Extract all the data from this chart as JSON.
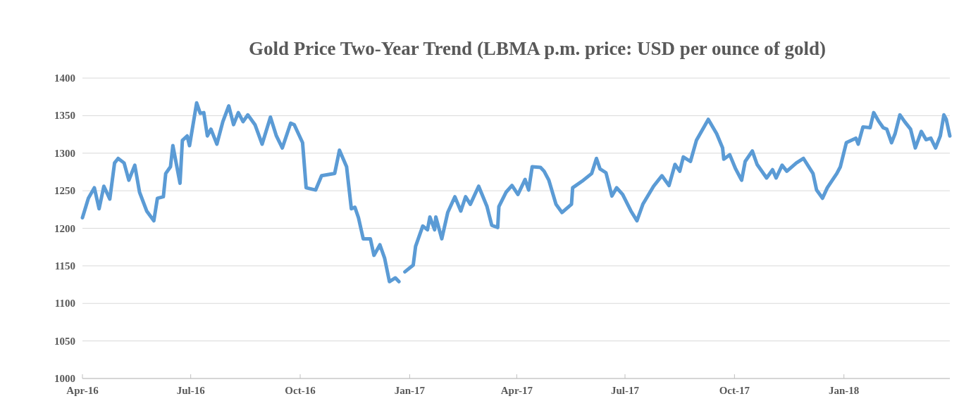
{
  "chart_data": {
    "type": "line",
    "title": "Gold Price Two-Year Trend (LBMA p.m. price: USD per ounce of gold)",
    "x": [
      "2016-04-01",
      "2016-04-06",
      "2016-04-11",
      "2016-04-15",
      "2016-04-19",
      "2016-04-24",
      "2016-04-28",
      "2016-05-01",
      "2016-05-06",
      "2016-05-10",
      "2016-05-15",
      "2016-05-19",
      "2016-05-25",
      "2016-05-31",
      "2016-06-03",
      "2016-06-08",
      "2016-06-10",
      "2016-06-14",
      "2016-06-16",
      "2016-06-22",
      "2016-06-24",
      "2016-06-28",
      "2016-06-30",
      "2016-07-06",
      "2016-07-09",
      "2016-07-12",
      "2016-07-15",
      "2016-07-18",
      "2016-07-23",
      "2016-07-28",
      "2016-08-02",
      "2016-08-06",
      "2016-08-10",
      "2016-08-14",
      "2016-08-18",
      "2016-08-24",
      "2016-08-30",
      "2016-09-06",
      "2016-09-11",
      "2016-09-16",
      "2016-09-23",
      "2016-09-26",
      "2016-10-03",
      "2016-10-06",
      "2016-10-14",
      "2016-10-19",
      "2016-10-30",
      "2016-11-03",
      "2016-11-09",
      "2016-11-13",
      "2016-11-16",
      "2016-11-19",
      "2016-11-23",
      "2016-11-29",
      "2016-12-02",
      "2016-12-07",
      "2016-12-11",
      "2016-12-15",
      "2016-12-20",
      "2016-12-23",
      "2016-12-26",
      "2016-12-28",
      "2017-01-04",
      "2017-01-06",
      "2017-01-12",
      "2017-01-16",
      "2017-01-18",
      "2017-01-22",
      "2017-01-23",
      "2017-01-28",
      "2017-02-02",
      "2017-02-08",
      "2017-02-13",
      "2017-02-17",
      "2017-02-21",
      "2017-02-28",
      "2017-03-07",
      "2017-03-11",
      "2017-03-16",
      "2017-03-17",
      "2017-03-23",
      "2017-03-28",
      "2017-04-02",
      "2017-04-08",
      "2017-04-11",
      "2017-04-14",
      "2017-04-21",
      "2017-04-24",
      "2017-04-28",
      "2017-05-04",
      "2017-05-09",
      "2017-05-17",
      "2017-05-18",
      "2017-05-27",
      "2017-06-03",
      "2017-06-07",
      "2017-06-10",
      "2017-06-15",
      "2017-06-20",
      "2017-06-24",
      "2017-06-29",
      "2017-07-06",
      "2017-07-11",
      "2017-07-16",
      "2017-07-25",
      "2017-08-01",
      "2017-08-07",
      "2017-08-12",
      "2017-08-16",
      "2017-08-19",
      "2017-08-25",
      "2017-08-30",
      "2017-09-09",
      "2017-09-16",
      "2017-09-21",
      "2017-09-22",
      "2017-09-27",
      "2017-10-02",
      "2017-10-07",
      "2017-10-10",
      "2017-10-16",
      "2017-10-20",
      "2017-10-28",
      "2017-11-02",
      "2017-11-05",
      "2017-11-10",
      "2017-11-14",
      "2017-11-22",
      "2017-11-28",
      "2017-12-06",
      "2017-12-09",
      "2017-12-14",
      "2017-12-18",
      "2017-12-26",
      "2017-12-29",
      "2018-01-03",
      "2018-01-11",
      "2018-01-13",
      "2018-01-17",
      "2018-01-23",
      "2018-01-26",
      "2018-01-30",
      "2018-02-03",
      "2018-02-06",
      "2018-02-10",
      "2018-02-13",
      "2018-02-17",
      "2018-02-21",
      "2018-02-26",
      "2018-03-02",
      "2018-03-07",
      "2018-03-11",
      "2018-03-15",
      "2018-03-19",
      "2018-03-23",
      "2018-03-26",
      "2018-03-28",
      "2018-03-31"
    ],
    "series": [
      {
        "color": "#5b9bd5",
        "values": [
          1214,
          1240,
          1254,
          1226,
          1256,
          1239,
          1287,
          1293,
          1287,
          1264,
          1284,
          1248,
          1223,
          1210,
          1240,
          1242,
          1273,
          1282,
          1310,
          1260,
          1317,
          1323,
          1310,
          1367,
          1353,
          1354,
          1323,
          1332,
          1312,
          1342,
          1363,
          1338,
          1354,
          1342,
          1351,
          1338,
          1312,
          1348,
          1323,
          1307,
          1340,
          1338,
          1314,
          1254,
          1251,
          1270,
          1273,
          1304,
          1282,
          1226,
          1228,
          1214,
          1186,
          1186,
          1164,
          1178,
          1160,
          1129,
          1134,
          1129,
          null,
          1142,
          1151,
          1176,
          1203,
          1198,
          1215,
          1198,
          1215,
          1186,
          1221,
          1242,
          1223,
          1242,
          1232,
          1256,
          1229,
          1204,
          1201,
          1229,
          1248,
          1257,
          1245,
          1265,
          1251,
          1282,
          1281,
          1276,
          1264,
          1232,
          1221,
          1232,
          1254,
          1264,
          1273,
          1293,
          1279,
          1274,
          1243,
          1254,
          1245,
          1223,
          1210,
          1232,
          1256,
          1270,
          1257,
          1285,
          1276,
          1295,
          1289,
          1317,
          1345,
          1326,
          1307,
          1292,
          1298,
          1279,
          1264,
          1289,
          1303,
          1285,
          1267,
          1278,
          1267,
          1284,
          1276,
          1287,
          1293,
          1273,
          1251,
          1240,
          1254,
          1273,
          1282,
          1314,
          1320,
          1312,
          1335,
          1334,
          1354,
          1343,
          1334,
          1332,
          1314,
          1326,
          1351,
          1342,
          1332,
          1307,
          1329,
          1318,
          1320,
          1307,
          1323,
          1351,
          1345,
          1323
        ]
      }
    ],
    "xlim": [
      "2016-04-01",
      "2018-03-31"
    ],
    "xticks": [
      {
        "value": "2016-04-01",
        "label": "Apr-16"
      },
      {
        "value": "2016-07-01",
        "label": "Jul-16"
      },
      {
        "value": "2016-10-01",
        "label": "Oct-16"
      },
      {
        "value": "2017-01-01",
        "label": "Jan-17"
      },
      {
        "value": "2017-04-01",
        "label": "Apr-17"
      },
      {
        "value": "2017-07-01",
        "label": "Jul-17"
      },
      {
        "value": "2017-10-01",
        "label": "Oct-17"
      },
      {
        "value": "2018-01-01",
        "label": "Jan-18"
      }
    ],
    "ylim": [
      1000,
      1400
    ],
    "yticks": [
      1000,
      1050,
      1100,
      1150,
      1200,
      1250,
      1300,
      1350,
      1400
    ],
    "grid": "y",
    "marker": "none",
    "line_style": "solid"
  }
}
